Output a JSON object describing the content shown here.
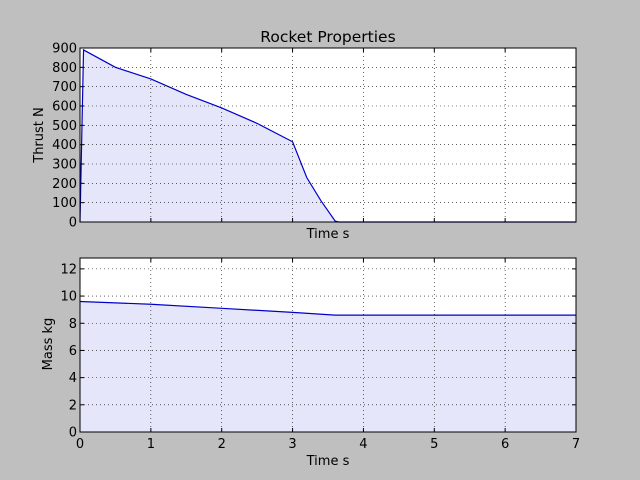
{
  "chart_data": [
    {
      "type": "area",
      "title": "Rocket Properties",
      "xlabel": "Time s",
      "ylabel": "Thrust N",
      "xlim": [
        0,
        7
      ],
      "ylim": [
        0,
        900
      ],
      "yticks": [
        0,
        100,
        200,
        300,
        400,
        500,
        600,
        700,
        800,
        900
      ],
      "xticks": [
        0,
        1,
        2,
        3,
        4,
        5,
        6,
        7
      ],
      "show_x_tick_labels": false,
      "grid": true,
      "line_color": "#0000cc",
      "fill_color": "#e6e6fa",
      "series": [
        {
          "x": [
            0,
            0.05,
            0.5,
            1.0,
            1.5,
            2.0,
            2.5,
            3.0,
            3.2,
            3.4,
            3.6,
            3.65,
            7.0
          ],
          "y": [
            0,
            890,
            800,
            740,
            660,
            590,
            510,
            415,
            230,
            110,
            5,
            0,
            0
          ]
        }
      ]
    },
    {
      "type": "area",
      "title": "",
      "xlabel": "Time s",
      "ylabel": "Mass kg",
      "xlim": [
        0,
        7
      ],
      "ylim": [
        0,
        12.8
      ],
      "yticks": [
        0,
        2,
        4,
        6,
        8,
        10,
        12
      ],
      "xticks": [
        0,
        1,
        2,
        3,
        4,
        5,
        6,
        7
      ],
      "show_x_tick_labels": true,
      "grid": true,
      "line_color": "#0000cc",
      "fill_color": "#e6e6fa",
      "series": [
        {
          "x": [
            0,
            1.0,
            2.0,
            3.0,
            3.6,
            7.0
          ],
          "y": [
            9.6,
            9.4,
            9.1,
            8.8,
            8.6,
            8.6
          ]
        }
      ]
    }
  ]
}
